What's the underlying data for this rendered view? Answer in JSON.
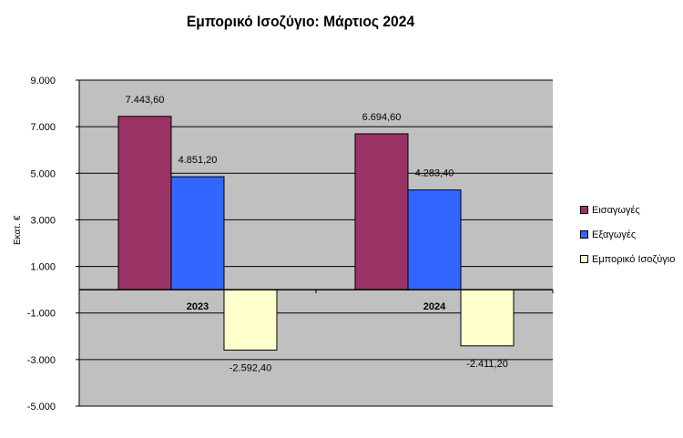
{
  "chart_data": {
    "type": "bar",
    "title": "Εμπορικό Ισοζύγιο: Μάρτιος 2024",
    "xlabel": "",
    "ylabel": "Εκατ. €",
    "categories": [
      "2023",
      "2024"
    ],
    "series": [
      {
        "name": "Εισαγωγές",
        "values": [
          7443.6,
          6694.6
        ],
        "labels": [
          "7.443,60",
          "6.694,60"
        ],
        "color": "#993366"
      },
      {
        "name": "Εξαγωγές",
        "values": [
          4851.2,
          4283.4
        ],
        "labels": [
          "4.851,20",
          "4.283,40"
        ],
        "color": "#3366ff"
      },
      {
        "name": "Εμπορικό Ισοζύγιο",
        "values": [
          -2592.4,
          -2411.2
        ],
        "labels": [
          "-2.592,40",
          "-2.411,20"
        ],
        "color": "#ffffcc"
      }
    ],
    "ylim": [
      -5000,
      9000
    ],
    "yticks": [
      9000,
      7000,
      5000,
      3000,
      1000,
      -1000,
      -3000,
      -5000
    ],
    "ytick_labels": [
      "9.000",
      "7.000",
      "5.000",
      "3.000",
      "1.000",
      "-1.000",
      "-3.000",
      "-5.000"
    ],
    "grid": true,
    "legend_position": "right",
    "plot_background": "#c0c0c0"
  }
}
